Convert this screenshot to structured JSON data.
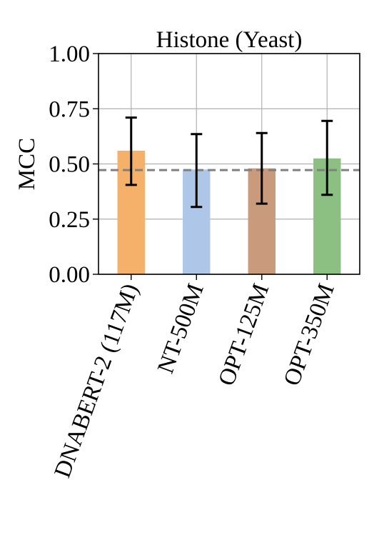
{
  "chart_data": {
    "type": "bar",
    "title": "Histone (Yeast)",
    "xlabel": "",
    "ylabel": "MCC",
    "ylim": [
      0,
      1
    ],
    "yticks": [
      "0.00",
      "0.25",
      "0.50",
      "0.75",
      "1.00"
    ],
    "grid": true,
    "categories": [
      "DNABERT-2 (117M)",
      "NT-500M",
      "OPT-125M",
      "OPT-350M"
    ],
    "values": [
      0.56,
      0.475,
      0.48,
      0.525
    ],
    "error_low": [
      0.405,
      0.305,
      0.32,
      0.36
    ],
    "error_high": [
      0.71,
      0.635,
      0.64,
      0.695
    ],
    "colors": [
      "#f5b06a",
      "#aec7e8",
      "#c99a7b",
      "#8cc083"
    ],
    "reference_line": {
      "y": 0.472,
      "style": "dashed",
      "color": "#808080"
    }
  }
}
